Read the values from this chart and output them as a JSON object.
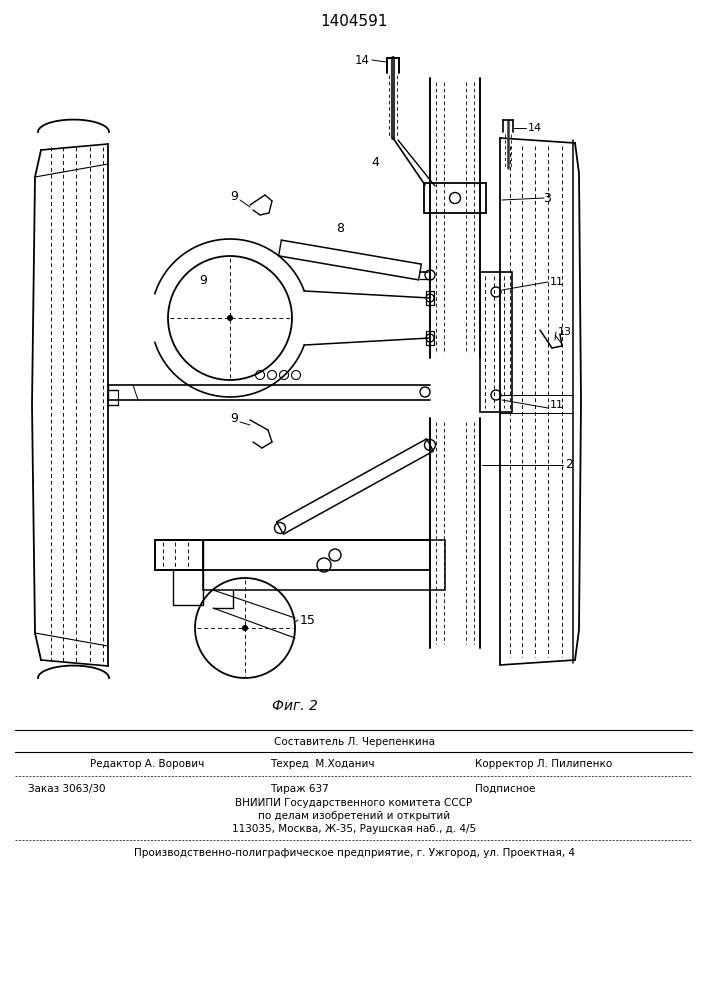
{
  "patent_number": "1404591",
  "fig_label": "Фиг. 2",
  "bg_color": "#f5f5f0",
  "footer": {
    "compiler": "Составитель Л. Черепенкина",
    "editor": "Редактор А. Ворович",
    "techred": "Техред  М.Ходанич",
    "corrector": "Корректор Л. Пилипенко",
    "order": "Заказ 3063/30",
    "tirazh": "Тираж 637",
    "podpisnoe": "Подписное",
    "vniiipi": "ВНИИПИ Государственного комитета СССР",
    "line2": "по делам изобретений и открытий",
    "line3": "113035, Москва, Ж-35, Раушская наб., д. 4/5",
    "factory": "Производственно-полиграфическое предприятие, г. Ужгород, ул. Проектная, 4"
  }
}
